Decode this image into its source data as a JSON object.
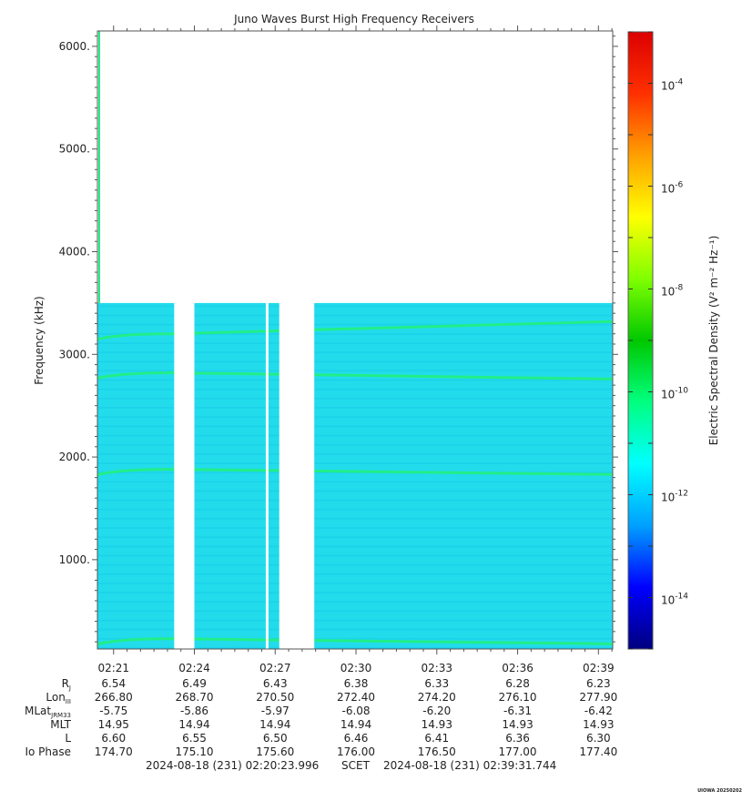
{
  "chart_data": {
    "type": "heatmap",
    "title": "Juno Waves Burst High Frequency Receivers",
    "ylabel": "Frequency (kHz)",
    "ylim": [
      130,
      6150
    ],
    "yticks": [
      {
        "value": 1000,
        "label": "1000."
      },
      {
        "value": 2000,
        "label": "2000."
      },
      {
        "value": 3000,
        "label": "3000."
      },
      {
        "value": 4000,
        "label": "4000."
      },
      {
        "value": 5000,
        "label": "5000."
      },
      {
        "value": 6000,
        "label": "6000."
      }
    ],
    "xlim_minutes": [
      20.4,
      39.53
    ],
    "xticks": [
      {
        "value": 21,
        "label": "02:21"
      },
      {
        "value": 24,
        "label": "02:24"
      },
      {
        "value": 27,
        "label": "02:27"
      },
      {
        "value": 30,
        "label": "02:30"
      },
      {
        "value": 33,
        "label": "02:33"
      },
      {
        "value": 36,
        "label": "02:36"
      },
      {
        "value": 39,
        "label": "02:39"
      }
    ],
    "data_extent": {
      "freq_min": 130,
      "freq_max": 3500
    },
    "data_gaps_minutes": [
      [
        23.25,
        24.0
      ],
      [
        26.65,
        26.75
      ],
      [
        27.15,
        28.45
      ]
    ],
    "emission_lines": [
      {
        "start_freq": 3200,
        "end_freq": 3320
      },
      {
        "start_freq": 2820,
        "end_freq": 2760
      },
      {
        "start_freq": 1880,
        "end_freq": 1830
      },
      {
        "start_freq": 230,
        "end_freq": 180
      }
    ],
    "colorbar": {
      "label": "Electric Spectral Density",
      "units": "(V² m⁻² Hz⁻¹)",
      "scale": "log",
      "range_exp": [
        -15,
        -3
      ],
      "tick_exps": [
        -14,
        -12,
        -10,
        -8,
        -6,
        -4
      ],
      "tick_labels": [
        "10",
        "10",
        "10",
        "10",
        "10",
        "10"
      ],
      "colors": [
        "#00007f",
        "#0000ff",
        "#00a0ff",
        "#00ffff",
        "#00ff80",
        "#00c800",
        "#80ff00",
        "#ffff00",
        "#ffa000",
        "#ff3000",
        "#dc0000"
      ]
    }
  },
  "ephemeris": {
    "labels": [
      "R",
      "Lon",
      "MLat",
      "MLT",
      "L",
      "Io Phase"
    ],
    "label_subs": [
      "J",
      "III",
      "JRM33",
      "",
      "",
      ""
    ],
    "rows": [
      [
        "6.54",
        "6.49",
        "6.43",
        "6.38",
        "6.33",
        "6.28",
        "6.23"
      ],
      [
        "266.80",
        "268.70",
        "270.50",
        "272.40",
        "274.20",
        "276.10",
        "277.90"
      ],
      [
        "-5.75",
        "-5.86",
        "-5.97",
        "-6.08",
        "-6.20",
        "-6.31",
        "-6.42"
      ],
      [
        "14.95",
        "14.94",
        "14.94",
        "14.94",
        "14.93",
        "14.93",
        "14.93"
      ],
      [
        "6.60",
        "6.55",
        "6.50",
        "6.46",
        "6.41",
        "6.36",
        "6.30"
      ],
      [
        "174.70",
        "175.10",
        "175.60",
        "176.00",
        "176.50",
        "177.00",
        "177.40"
      ]
    ]
  },
  "footer": {
    "start": "2024-08-18 (231) 02:20:23.996",
    "scet": "SCET",
    "end": "2024-08-18 (231) 02:39:31.744"
  },
  "stamp": "UIOWA 20250202"
}
